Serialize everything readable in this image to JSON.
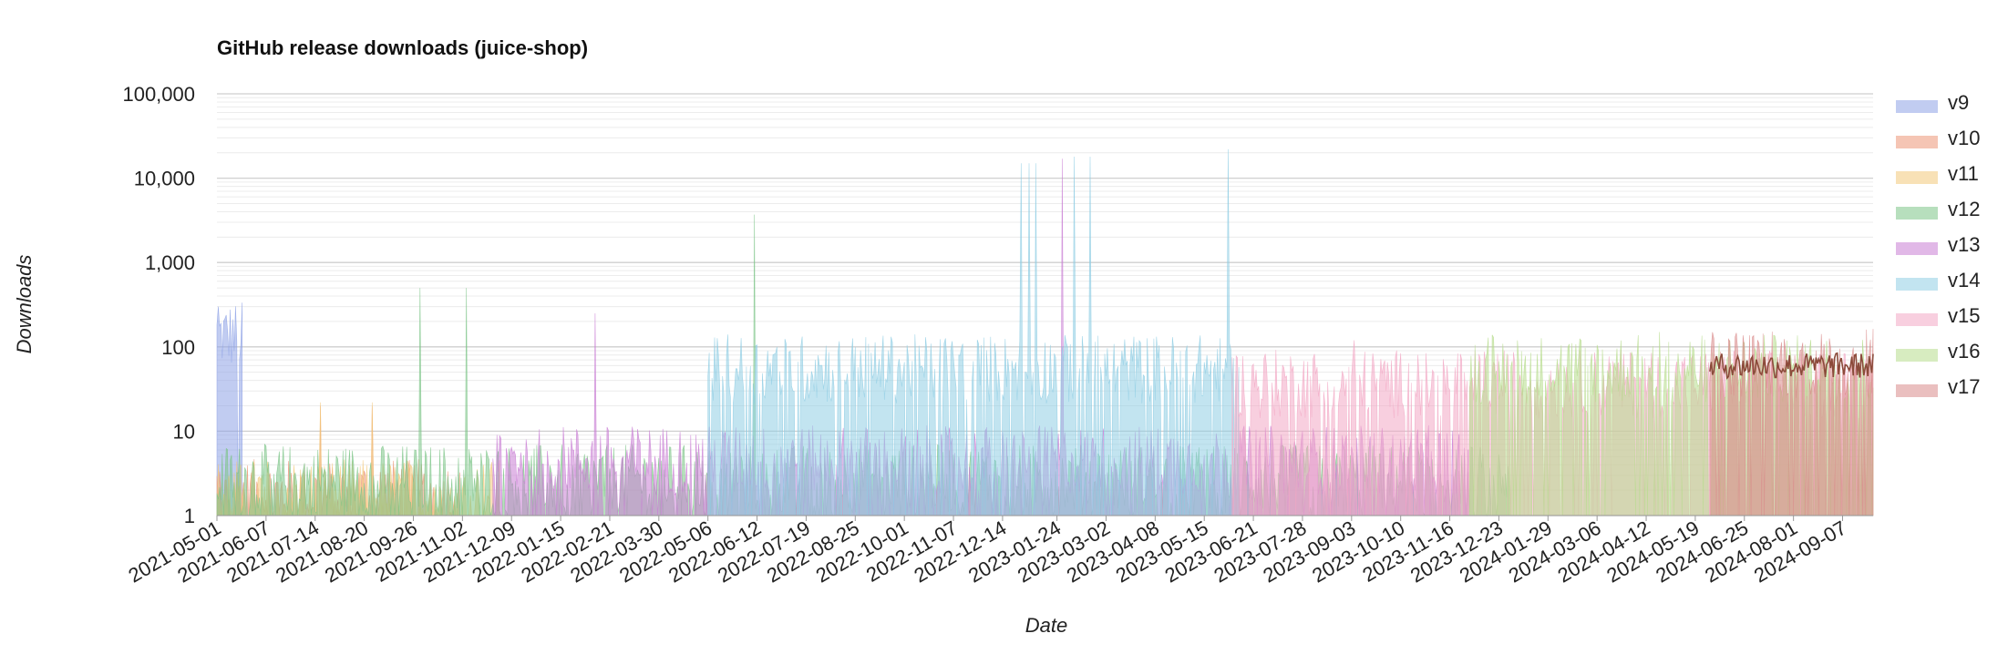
{
  "chart_data": {
    "type": "area",
    "title": "GitHub release downloads (juice-shop)",
    "xlabel": "Date",
    "ylabel": "Downloads",
    "yscale": "log",
    "ylim": [
      1,
      100000
    ],
    "y_ticks": [
      "1",
      "10",
      "100",
      "1,000",
      "10,000",
      "100,000"
    ],
    "x_ticks": [
      "2021-05-01",
      "2021-06-07",
      "2021-07-14",
      "2021-08-20",
      "2021-09-26",
      "2021-11-02",
      "2021-12-09",
      "2022-01-15",
      "2022-02-21",
      "2022-03-30",
      "2022-05-06",
      "2022-06-12",
      "2022-07-19",
      "2022-08-25",
      "2022-10-01",
      "2022-11-07",
      "2022-12-14",
      "2023-01-24",
      "2023-03-02",
      "2023-04-08",
      "2023-05-15",
      "2023-06-21",
      "2023-07-28",
      "2023-09-03",
      "2023-10-10",
      "2023-11-16",
      "2023-12-23",
      "2024-01-29",
      "2024-03-06",
      "2024-04-12",
      "2024-05-19",
      "2024-06-25",
      "2024-08-01",
      "2024-09-07"
    ],
    "x_range": [
      "2021-05-01",
      "2024-09-30"
    ],
    "grid": true,
    "legend_position": "right",
    "series": [
      {
        "name": "v9",
        "color": "#8ea3e6",
        "start": "2021-05-01",
        "end": "2021-05-20",
        "typical": 150,
        "peaks": [
          [
            "2021-05-02",
            300
          ]
        ]
      },
      {
        "name": "v10",
        "color": "#ec9677",
        "start": "2021-05-01",
        "end": "2021-10-31",
        "typical": 2,
        "peaks": [
          [
            "2021-07-18",
            20
          ],
          [
            "2021-08-26",
            20
          ]
        ]
      },
      {
        "name": "v11",
        "color": "#f3c87a",
        "start": "2021-05-01",
        "end": "2021-11-30",
        "typical": 2,
        "peaks": [
          [
            "2021-07-18",
            22
          ],
          [
            "2021-08-26",
            22
          ]
        ]
      },
      {
        "name": "v12",
        "color": "#7cc487",
        "start": "2021-05-01",
        "end": "2023-12-31",
        "typical": 3,
        "peaks": [
          [
            "2021-10-01",
            500
          ],
          [
            "2021-11-05",
            500
          ],
          [
            "2022-06-10",
            3700
          ]
        ]
      },
      {
        "name": "v13",
        "color": "#c97ed4",
        "start": "2021-11-25",
        "end": "2023-11-30",
        "typical": 5,
        "peaks": [
          [
            "2022-02-10",
            250
          ],
          [
            "2023-01-28",
            17000
          ]
        ]
      },
      {
        "name": "v14",
        "color": "#8fcde3",
        "start": "2022-05-06",
        "end": "2023-06-10",
        "typical": 60,
        "peaks": [
          [
            "2022-12-28",
            15000
          ],
          [
            "2023-01-03",
            15000
          ],
          [
            "2023-01-08",
            15000
          ],
          [
            "2023-02-06",
            18000
          ],
          [
            "2023-02-18",
            18000
          ],
          [
            "2023-06-02",
            22000
          ]
        ]
      },
      {
        "name": "v15",
        "color": "#f3a7c4",
        "start": "2023-06-05",
        "end": "2024-09-30",
        "typical": 40,
        "peaks": [
          [
            "2023-09-05",
            120
          ]
        ]
      },
      {
        "name": "v16",
        "color": "#b6dc8c",
        "start": "2023-12-01",
        "end": "2024-09-30",
        "typical": 60,
        "peaks": [
          [
            "2024-04-22",
            150
          ]
        ]
      },
      {
        "name": "v17",
        "color": "#d98b8b",
        "start": "2024-05-30",
        "end": "2024-09-30",
        "typical": 70,
        "peaks": [
          [
            "2024-09-25",
            160
          ]
        ]
      }
    ],
    "trend_line": {
      "series": "v17",
      "color": "#8b4a3a",
      "typical": 60
    }
  }
}
